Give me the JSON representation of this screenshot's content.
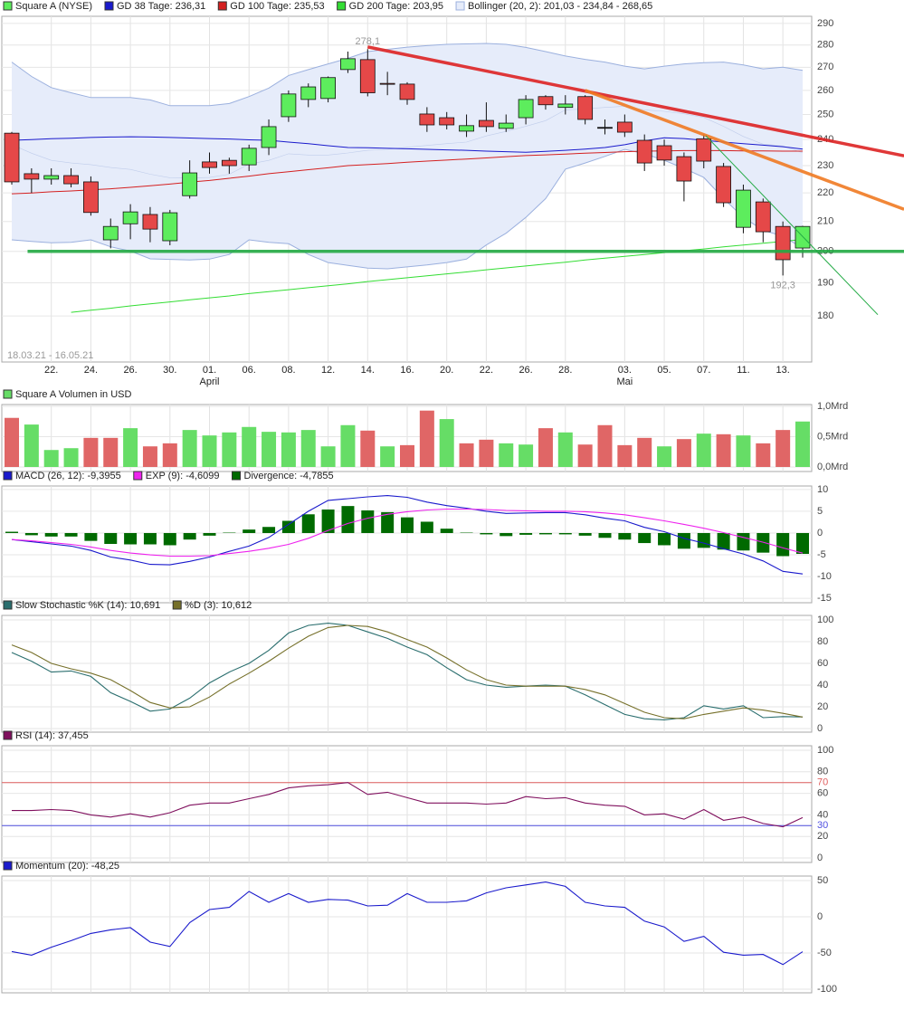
{
  "chart_data": [
    {
      "type": "candlestick",
      "ohlc_name": "Square A (NYSE)",
      "categories": [
        null,
        null,
        "22.",
        null,
        "24.",
        null,
        "26.",
        null,
        "30.",
        null,
        "01.",
        null,
        "06.",
        null,
        "08.",
        null,
        "12.",
        null,
        "14.",
        null,
        "16.",
        null,
        "20.",
        null,
        "22.",
        null,
        "26.",
        null,
        "28.",
        null,
        null,
        "03.",
        null,
        "05.",
        null,
        "07.",
        null,
        "11.",
        null,
        "13.",
        null
      ],
      "month_labels": [
        null,
        null,
        null,
        null,
        null,
        null,
        null,
        null,
        null,
        null,
        "April",
        null,
        null,
        null,
        null,
        null,
        null,
        null,
        null,
        null,
        null,
        null,
        null,
        null,
        null,
        null,
        null,
        null,
        null,
        null,
        null,
        "Mai",
        null,
        null,
        null,
        null,
        null,
        null,
        null,
        null,
        null
      ],
      "date_range": "18.03.21 - 16.05.21",
      "open": [
        242.5,
        227,
        225,
        226.3,
        224,
        203.8,
        209.2,
        212.4,
        203.5,
        219,
        231.4,
        232,
        230.3,
        236.9,
        249.1,
        256.2,
        256.6,
        269,
        273.4,
        263,
        262.7,
        250.2,
        248.7,
        243.3,
        247.6,
        244.4,
        248.7,
        257.4,
        252.9,
        257.4,
        244.8,
        246.9,
        239.7,
        237.6,
        233.4,
        240.3,
        229.7,
        208,
        216.8,
        208.3,
        201.1
      ],
      "high": [
        243,
        229,
        229,
        229,
        226,
        211,
        216,
        215,
        214,
        232,
        235,
        233,
        238,
        248,
        260,
        263,
        266,
        277,
        278.1,
        268,
        263.5,
        253,
        251,
        250,
        255,
        250,
        258,
        258,
        258,
        258,
        248,
        250,
        242,
        240,
        235,
        242,
        231,
        223,
        218,
        210,
        208.5
      ],
      "low": [
        223,
        220,
        223,
        222,
        212,
        201,
        204,
        203,
        202,
        218,
        227,
        227,
        228,
        234,
        247,
        253,
        255,
        267.5,
        257.5,
        258,
        254,
        243,
        244,
        241,
        243,
        243,
        246,
        252,
        250,
        246,
        242,
        241,
        228,
        230,
        217,
        229,
        215,
        206,
        203,
        192.3,
        198
      ],
      "close": [
        224,
        225,
        226.3,
        223.3,
        213.1,
        208.3,
        213.3,
        207.4,
        213,
        227.3,
        229.3,
        230,
        236.6,
        245.1,
        258.5,
        261.5,
        265.5,
        273.8,
        259,
        262.7,
        256.2,
        245.8,
        245.8,
        245.5,
        245.1,
        246.5,
        256.2,
        254,
        254.3,
        248,
        244.8,
        242.9,
        231,
        232.1,
        224.3,
        231.7,
        216.5,
        221,
        206.5,
        197.3,
        208.3
      ],
      "up_color": "#5ded5d",
      "down_color": "#e54848",
      "series": [
        {
          "name": "GD 38 Tage: 236,31",
          "color": "#1a1acc",
          "values": [
            239.7,
            240,
            240.3,
            240.5,
            240.8,
            241,
            241.1,
            241,
            240.8,
            240.6,
            240.4,
            240.2,
            239.9,
            239.7,
            239,
            238.4,
            237.6,
            236.9,
            236.8,
            236.6,
            236.4,
            236.2,
            236,
            235.8,
            235.5,
            235.3,
            235.1,
            235.4,
            235.8,
            236.3,
            236.9,
            238,
            239.5,
            240.7,
            240.4,
            239.7,
            239,
            238.4,
            237.8,
            237.2,
            236.3
          ]
        },
        {
          "name": "GD 100 Tage: 235,53",
          "color": "#d42020",
          "values": [
            219.7,
            220,
            220.4,
            220.7,
            221.1,
            221.5,
            222,
            222.6,
            223.2,
            223.9,
            224.5,
            225.3,
            226.1,
            227,
            227.7,
            228.5,
            229.2,
            230,
            230.4,
            230.8,
            231.3,
            231.7,
            232.1,
            232.5,
            232.9,
            233.4,
            233.8,
            234.1,
            234.4,
            234.7,
            235,
            235.3,
            235.5,
            235.6,
            235.7,
            235.7,
            235.7,
            235.6,
            235.6,
            235.5,
            235.5
          ]
        },
        {
          "name": "GD 200 Tage: 203,95",
          "color": "#33dd33",
          "values": [
            null,
            null,
            null,
            181.1,
            181.7,
            182.3,
            183.0,
            183.6,
            184.2,
            184.8,
            185.4,
            186.0,
            186.7,
            187.3,
            187.9,
            188.5,
            189.1,
            189.7,
            190.4,
            191.0,
            191.6,
            192.2,
            192.8,
            193.4,
            194.1,
            194.7,
            195.3,
            195.9,
            196.5,
            197.2,
            197.8,
            198.4,
            199.0,
            199.6,
            200.2,
            200.8,
            201.5,
            202.1,
            202.7,
            203.3,
            203.95
          ]
        }
      ],
      "bollinger": {
        "name": "Bollinger (20, 2): 201,03 - 234,84 - 268,65",
        "color": "#9bb0de",
        "fill": "#e6ecfa",
        "upper": [
          272.3,
          266,
          261.2,
          259,
          257,
          257,
          257,
          256,
          253.6,
          253.6,
          253.6,
          254.5,
          257.4,
          261,
          266.4,
          269,
          271.5,
          274,
          277,
          278,
          279,
          279.7,
          280.3,
          280.5,
          280.7,
          280.3,
          278.9,
          277,
          275,
          273.5,
          272.3,
          270.5,
          269.3,
          270.5,
          271.5,
          272,
          272.3,
          271,
          269.3,
          270,
          268.65
        ],
        "middle": [
          238,
          234.7,
          232,
          231,
          230.4,
          229.3,
          228.6,
          226.8,
          225.5,
          225.4,
          225.6,
          226.8,
          230.6,
          232,
          234.5,
          234,
          234,
          234.8,
          235.8,
          236.2,
          237,
          237.7,
          238.4,
          239,
          241.4,
          243.2,
          245.2,
          247.5,
          251.9,
          252.3,
          252.9,
          253.4,
          251.9,
          251.3,
          250.3,
          248.8,
          245.2,
          241.2,
          238.2,
          237.5,
          234.84
        ],
        "lower": [
          203.8,
          203.3,
          202.8,
          203,
          203.8,
          201.5,
          200.1,
          197.6,
          197.4,
          197.2,
          197.5,
          199,
          203.8,
          203,
          202.5,
          199,
          196.4,
          195.5,
          194.6,
          194.4,
          195,
          195.6,
          196.4,
          197.5,
          202.1,
          206,
          211.4,
          218,
          228.7,
          231,
          233.5,
          236.2,
          234.5,
          232,
          229,
          225.6,
          218,
          211.4,
          207,
          205,
          201.03
        ]
      },
      "trend_lines": [
        {
          "color": "#dd2222",
          "style": "thick",
          "x": [
            18,
            45.13
          ],
          "y": [
            279.1,
            233.7
          ]
        },
        {
          "color": "#f07a22",
          "style": "thick",
          "x": [
            29,
            45.13
          ],
          "y": [
            260,
            214.2
          ]
        },
        {
          "color": "#22aa44",
          "style": "thick",
          "x": [
            0.8,
            45.13
          ],
          "y": [
            200,
            200
          ]
        },
        {
          "color": "#22aa44",
          "style": "thin",
          "x": [
            35.1,
            43.8
          ],
          "y": [
            241.5,
            180.4
          ]
        }
      ],
      "high_label": "278,1",
      "low_label": "192,3",
      "log_scale": true,
      "ylim": [
        167,
        293.4
      ],
      "yticks": [
        290,
        280,
        270,
        260,
        250,
        240,
        230,
        220,
        210,
        200,
        190,
        180
      ],
      "grid": true
    },
    {
      "type": "bar",
      "title": "Square A Volumen in USD",
      "legend_color": "#66dd66",
      "values": [
        0.81,
        0.7,
        0.28,
        0.31,
        0.48,
        0.48,
        0.64,
        0.34,
        0.39,
        0.61,
        0.52,
        0.57,
        0.66,
        0.58,
        0.57,
        0.61,
        0.34,
        0.69,
        0.6,
        0.34,
        0.36,
        0.93,
        0.79,
        0.39,
        0.45,
        0.39,
        0.37,
        0.64,
        0.57,
        0.37,
        0.69,
        0.36,
        0.48,
        0.34,
        0.46,
        0.55,
        0.54,
        0.52,
        0.39,
        0.61,
        0.75
      ],
      "colors": [
        "#e06666",
        "#66dd66",
        "#66dd66",
        "#66dd66",
        "#e06666",
        "#e06666",
        "#66dd66",
        "#e06666",
        "#e06666",
        "#66dd66",
        "#66dd66",
        "#66dd66",
        "#66dd66",
        "#66dd66",
        "#66dd66",
        "#66dd66",
        "#66dd66",
        "#66dd66",
        "#e06666",
        "#66dd66",
        "#e06666",
        "#e06666",
        "#66dd66",
        "#e06666",
        "#e06666",
        "#66dd66",
        "#66dd66",
        "#e06666",
        "#66dd66",
        "#e06666",
        "#e06666",
        "#e06666",
        "#e06666",
        "#66dd66",
        "#e06666",
        "#66dd66",
        "#e06666",
        "#66dd66",
        "#e06666",
        "#e06666",
        "#66dd66"
      ],
      "ylim": [
        -0.075,
        1.03
      ],
      "yticks": [
        {
          "value": 1.0,
          "label": "1,0Mrd"
        },
        {
          "value": 0.5,
          "label": "0,5Mrd"
        },
        {
          "value": 0,
          "label": "0,0Mrd"
        }
      ],
      "grid": true
    },
    {
      "type": "macd",
      "series": [
        {
          "name": "MACD (26, 12): -9,3955",
          "color": "#1a1acc",
          "mark": "line",
          "values": [
            -1.5,
            -2,
            -2.5,
            -3,
            -4,
            -5.5,
            -6.2,
            -7.2,
            -7.3,
            -6.5,
            -5.5,
            -4.2,
            -3,
            -1,
            2,
            5,
            7.5,
            7.9,
            8.3,
            8.6,
            8.2,
            7.1,
            6.3,
            5.7,
            5,
            4.5,
            4.6,
            4.7,
            4.7,
            4.2,
            3.4,
            2.8,
            1.3,
            0.3,
            -1.2,
            -2.3,
            -3.6,
            -4.8,
            -6.4,
            -8.8,
            -9.3955
          ]
        },
        {
          "name": "EXP (9): -4,6099",
          "color": "#ee22ee",
          "mark": "line",
          "values": [
            -1.5,
            -1.8,
            -2.2,
            -2.6,
            -3.2,
            -4,
            -4.6,
            -5,
            -5.3,
            -5.3,
            -5.2,
            -4.7,
            -4.2,
            -3.5,
            -2.6,
            -1.2,
            0.6,
            2.2,
            3.4,
            4.3,
            4.9,
            5.3,
            5.5,
            5.5,
            5.4,
            5.2,
            5.1,
            5,
            5,
            4.9,
            4.6,
            4.2,
            3.5,
            2.8,
            2,
            1.1,
            0.1,
            -1,
            -2.1,
            -3.4,
            -4.6099
          ]
        },
        {
          "name": "Divergence: -4,7855",
          "color": "#006a00",
          "mark": "bar",
          "values": [
            0.3,
            -0.5,
            -0.8,
            -0.8,
            -1.8,
            -2.5,
            -2.6,
            -2.6,
            -2.8,
            -1.5,
            -0.6,
            0.1,
            0.8,
            1.4,
            2.8,
            4.3,
            5.4,
            6.2,
            5.2,
            4.8,
            3.6,
            2.6,
            1,
            0.1,
            -0.3,
            -0.7,
            -0.4,
            -0.3,
            -0.3,
            -0.6,
            -1.1,
            -1.5,
            -2.3,
            -2.8,
            -3.6,
            -3.4,
            -3.8,
            -4,
            -4.5,
            -5.3,
            -4.7855
          ]
        }
      ],
      "ylim": [
        -16,
        10.8
      ],
      "yticks": [
        10,
        5,
        0,
        -5,
        -10,
        -15
      ],
      "grid": true
    },
    {
      "type": "line",
      "series": [
        {
          "name": "Slow Stochastic %K (14): 10,691",
          "color": "#2a6e6e",
          "values": [
            70,
            62,
            52,
            53,
            48,
            33,
            25,
            16,
            18,
            28,
            42,
            52,
            60,
            72,
            88,
            95,
            97,
            95,
            89,
            83,
            75,
            68,
            56,
            45,
            40,
            38,
            39,
            40,
            39,
            31,
            22,
            13,
            9,
            8,
            10,
            21,
            18,
            21,
            10,
            11,
            10.691
          ]
        },
        {
          "name": "%D (3): 10,612",
          "color": "#76702a",
          "values": [
            77,
            70,
            60,
            55,
            51,
            45,
            35,
            24,
            19,
            20,
            29,
            41,
            51,
            62,
            74,
            85,
            93,
            95,
            94,
            89,
            82,
            75,
            65,
            54,
            45,
            40,
            39,
            39,
            39,
            36,
            31,
            23,
            15,
            10,
            9,
            13,
            16,
            19,
            17,
            14,
            10.612
          ]
        }
      ],
      "ylim": [
        -3.3,
        104.2
      ],
      "yticks": [
        100,
        80,
        60,
        40,
        20,
        0
      ],
      "grid": true
    },
    {
      "type": "line",
      "series": [
        {
          "name": "RSI (14): 37,455",
          "color": "#80105e",
          "values": [
            44,
            44,
            45,
            44,
            40,
            38,
            41,
            38,
            42,
            49,
            51,
            51,
            55,
            59,
            65,
            67,
            68,
            70,
            59,
            61,
            56,
            51,
            51,
            51,
            50,
            51,
            57,
            55,
            56,
            51,
            49,
            48,
            40,
            41,
            36,
            45,
            35,
            38,
            32,
            29,
            37.455
          ]
        }
      ],
      "reference_lines": [
        {
          "value": 70,
          "color": "#e06060"
        },
        {
          "value": 30,
          "color": "#5050e0"
        }
      ],
      "ylim": [
        -4.2,
        104.2
      ],
      "yticks": [
        100,
        80,
        70,
        60,
        40,
        30,
        20,
        0
      ],
      "grid": true
    },
    {
      "type": "line",
      "series": [
        {
          "name": "Momentum (20): -48,25",
          "color": "#1a1acc",
          "values": [
            -48,
            -53,
            -42,
            -33,
            -23,
            -18,
            -15,
            -35,
            -41,
            -8,
            10,
            13,
            35,
            20,
            32,
            20,
            24,
            23,
            15,
            16,
            32,
            20,
            20,
            22,
            33,
            40,
            44,
            48,
            42,
            20,
            15,
            13,
            -6,
            -14,
            -34,
            -27,
            -49,
            -53,
            -52,
            -66,
            -48.25
          ]
        }
      ],
      "ylim": [
        -105,
        56.25
      ],
      "yticks": [
        50,
        0,
        -50,
        -100
      ],
      "grid": true
    }
  ]
}
